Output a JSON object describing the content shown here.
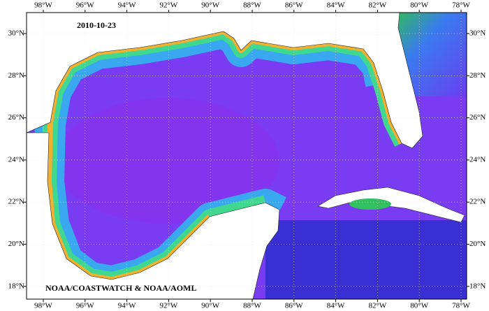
{
  "map": {
    "date": "2010-10-23",
    "credit": "NOAA/COASTWATCH & NOAA/AOML",
    "longitude_labels": [
      "98°W",
      "96°W",
      "94°W",
      "92°W",
      "90°W",
      "88°W",
      "86°W",
      "84°W",
      "82°W",
      "80°W",
      "78°W"
    ],
    "latitude_labels": [
      "30°N",
      "28°N",
      "26°N",
      "24°N",
      "22°N",
      "20°N",
      "18°N"
    ]
  }
}
